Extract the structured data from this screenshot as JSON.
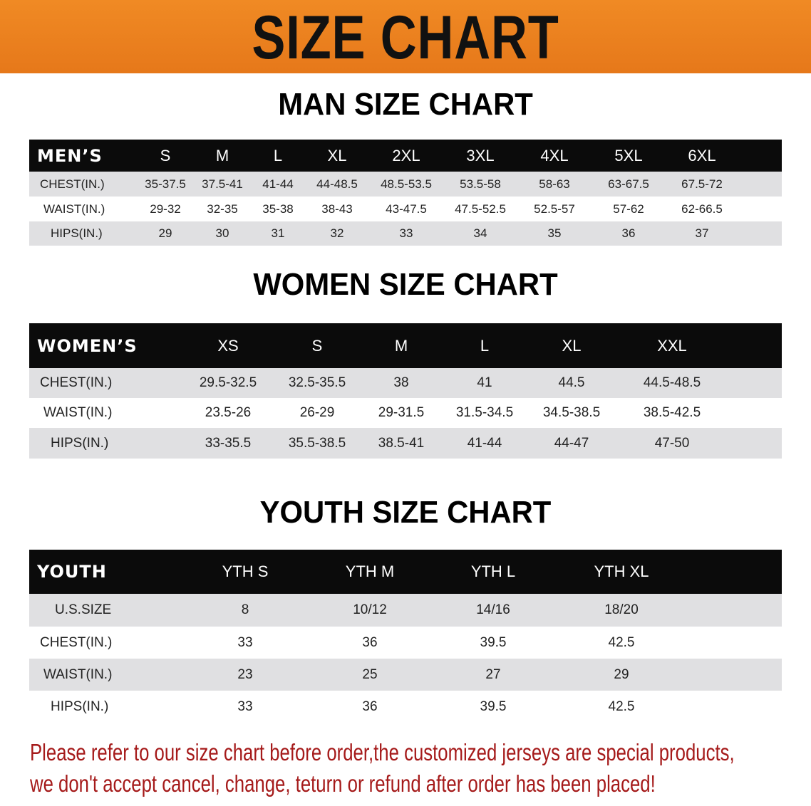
{
  "banner_title": "SIZE CHART",
  "men": {
    "title": "MAN SIZE CHART",
    "header": [
      "MEN’S",
      "S",
      "M",
      "L",
      "XL",
      "2XL",
      "3XL",
      "4XL",
      "5XL",
      "6XL"
    ],
    "rows": [
      [
        "CHEST(IN.)",
        "35-37.5",
        "37.5-41",
        "41-44",
        "44-48.5",
        "48.5-53.5",
        "53.5-58",
        "58-63",
        "63-67.5",
        "67.5-72"
      ],
      [
        "WAIST(IN.)",
        "29-32",
        "32-35",
        "35-38",
        "38-43",
        "43-47.5",
        "47.5-52.5",
        "52.5-57",
        "57-62",
        "62-66.5"
      ],
      [
        "HIPS(IN.)",
        "29",
        "30",
        "31",
        "32",
        "33",
        "34",
        "35",
        "36",
        "37"
      ]
    ]
  },
  "women": {
    "title": "WOMEN SIZE CHART",
    "header": [
      "WOMEN’S",
      "XS",
      "S",
      "M",
      "L",
      "XL",
      "XXL"
    ],
    "rows": [
      [
        "CHEST(IN.)",
        "29.5-32.5",
        "32.5-35.5",
        "38",
        "41",
        "44.5",
        "44.5-48.5"
      ],
      [
        "WAIST(IN.)",
        "23.5-26",
        "26-29",
        "29-31.5",
        "31.5-34.5",
        "34.5-38.5",
        "38.5-42.5"
      ],
      [
        "HIPS(IN.)",
        "33-35.5",
        "35.5-38.5",
        "38.5-41",
        "41-44",
        "44-47",
        "47-50"
      ]
    ]
  },
  "youth": {
    "title": "YOUTH SIZE CHART",
    "header": [
      "YOUTH",
      "YTH S",
      "YTH M",
      "YTH L",
      "YTH XL"
    ],
    "rows": [
      [
        "U.S.SIZE",
        "8",
        "10/12",
        "14/16",
        "18/20"
      ],
      [
        "CHEST(IN.)",
        "33",
        "36",
        "39.5",
        "42.5"
      ],
      [
        "WAIST(IN.)",
        "23",
        "25",
        "27",
        "29"
      ],
      [
        "HIPS(IN.)",
        "33",
        "36",
        "39.5",
        "42.5"
      ]
    ]
  },
  "notice": {
    "line1": "Please refer to our size chart before order,the customized jerseys are special products,",
    "line2": "we don't accept cancel, change, teturn or refund after order has been placed!"
  },
  "colors": {
    "banner": "#e8801e",
    "notice": "#a51a1a",
    "header_row": "#0b0b0b",
    "stripe": "#e0e0e2"
  }
}
